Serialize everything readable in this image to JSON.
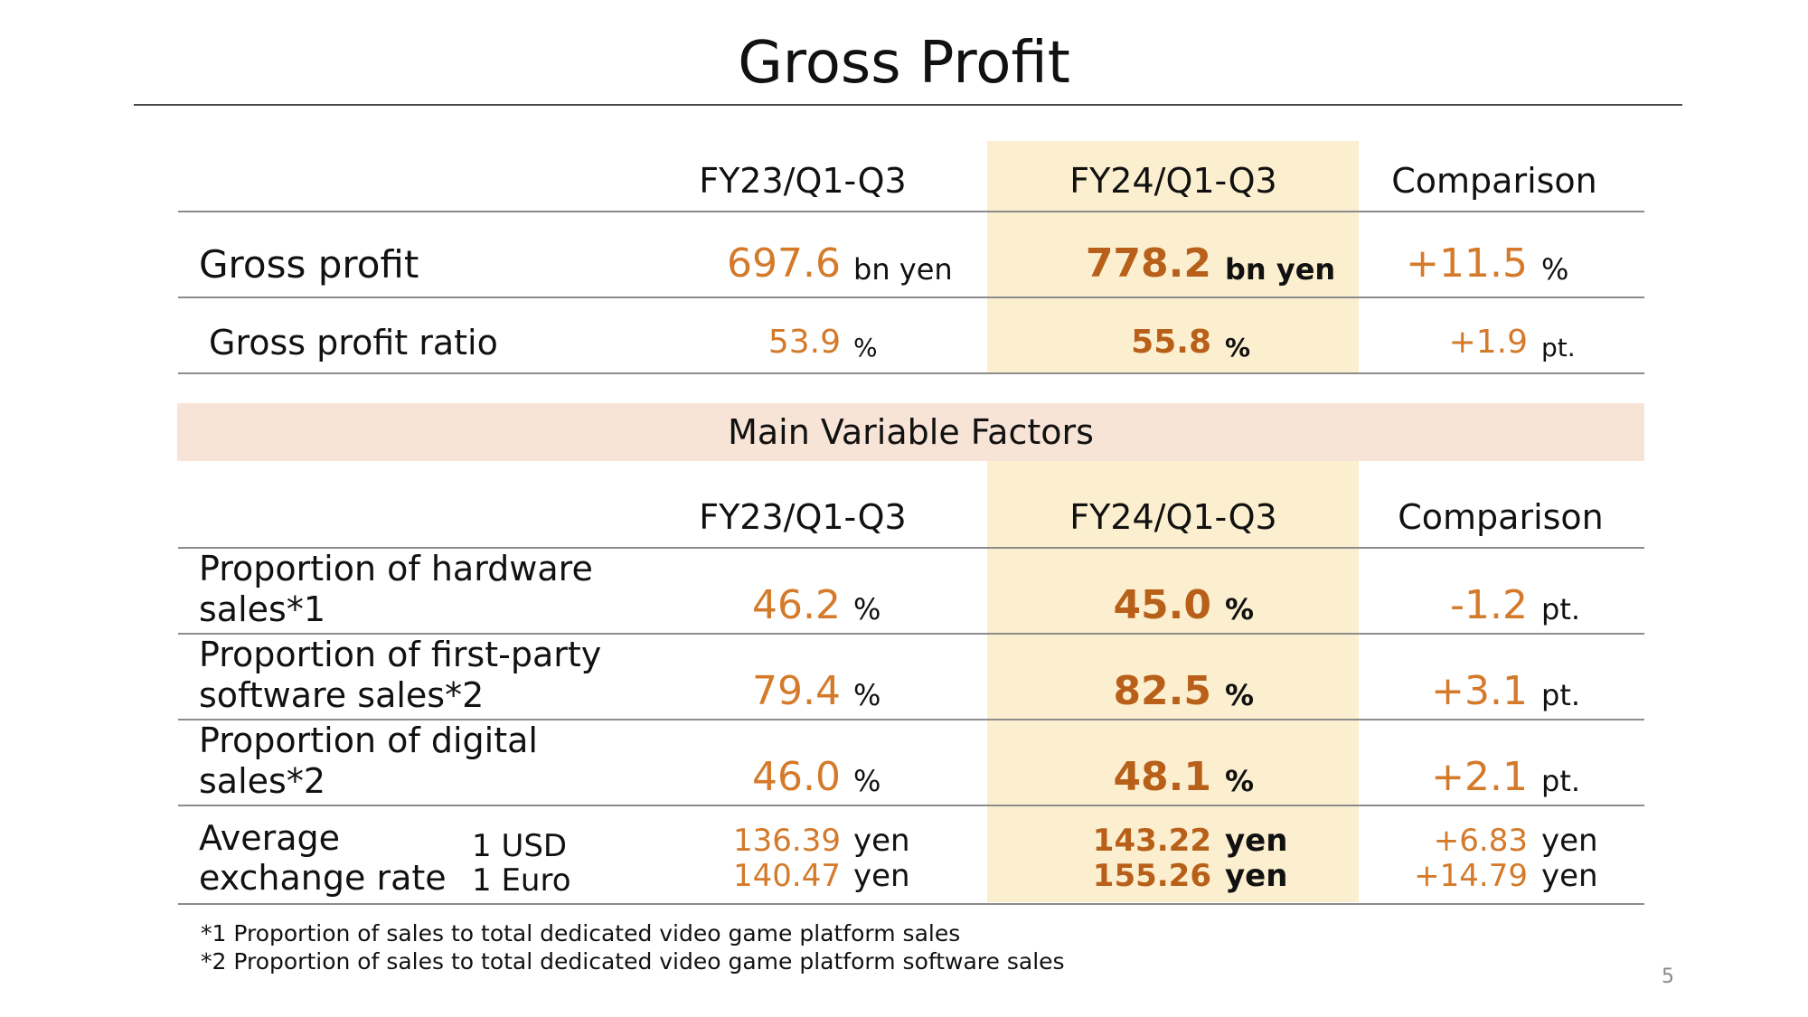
{
  "title": "Gross Profit",
  "page_number": "5",
  "table1": {
    "headers": [
      "FY23/Q1-Q3",
      "FY24/Q1-Q3",
      "Comparison"
    ],
    "rows": [
      {
        "label": "Gross profit",
        "fy23_value": "697.6",
        "fy23_unit": "bn yen",
        "fy24_value": "778.2",
        "fy24_unit": "bn yen",
        "cmp_value": "+11.5",
        "cmp_unit": "%"
      },
      {
        "label": "Gross profit ratio",
        "fy23_value": "53.9",
        "fy23_unit": "%",
        "fy24_value": "55.8",
        "fy24_unit": "%",
        "cmp_value": "+1.9",
        "cmp_unit": "pt."
      }
    ]
  },
  "banner": "Main Variable Factors",
  "table2": {
    "headers": [
      "FY23/Q1-Q3",
      "FY24/Q1-Q3",
      "Comparison"
    ],
    "rows": [
      {
        "label_line1": "Proportion of hardware",
        "label_line2": "sales*1",
        "fy23_value": "46.2",
        "fy23_unit": "%",
        "fy24_value": "45.0",
        "fy24_unit": "%",
        "cmp_value": "-1.2",
        "cmp_unit": "pt."
      },
      {
        "label_line1": "Proportion of first-party",
        "label_line2": "software sales*2",
        "fy23_value": "79.4",
        "fy23_unit": "%",
        "fy24_value": "82.5",
        "fy24_unit": "%",
        "cmp_value": "+3.1",
        "cmp_unit": "pt."
      },
      {
        "label_line1": "Proportion of digital",
        "label_line2": "sales*2",
        "fy23_value": "46.0",
        "fy23_unit": "%",
        "fy24_value": "48.1",
        "fy24_unit": "%",
        "cmp_value": "+2.1",
        "cmp_unit": "pt."
      }
    ],
    "exchange": {
      "label_line1": "Average",
      "label_line2": "exchange rate",
      "currencies": [
        {
          "name": "1 USD",
          "fy23_value": "136.39",
          "fy23_unit": "yen",
          "fy24_value": "143.22",
          "fy24_unit": "yen",
          "cmp_value": "+6.83",
          "cmp_unit": "yen"
        },
        {
          "name": "1 Euro",
          "fy23_value": "140.47",
          "fy23_unit": "yen",
          "fy24_value": "155.26",
          "fy24_unit": "yen",
          "cmp_value": "+14.79",
          "cmp_unit": "yen"
        }
      ]
    }
  },
  "footnotes": [
    "*1 Proportion of sales to total dedicated video game platform sales",
    "*2 Proportion of sales to total dedicated video game platform software sales"
  ],
  "colors": {
    "value_orange": "#d47a2a",
    "highlight_column": "#fcefcf",
    "banner_bg": "#f8e3d7"
  }
}
